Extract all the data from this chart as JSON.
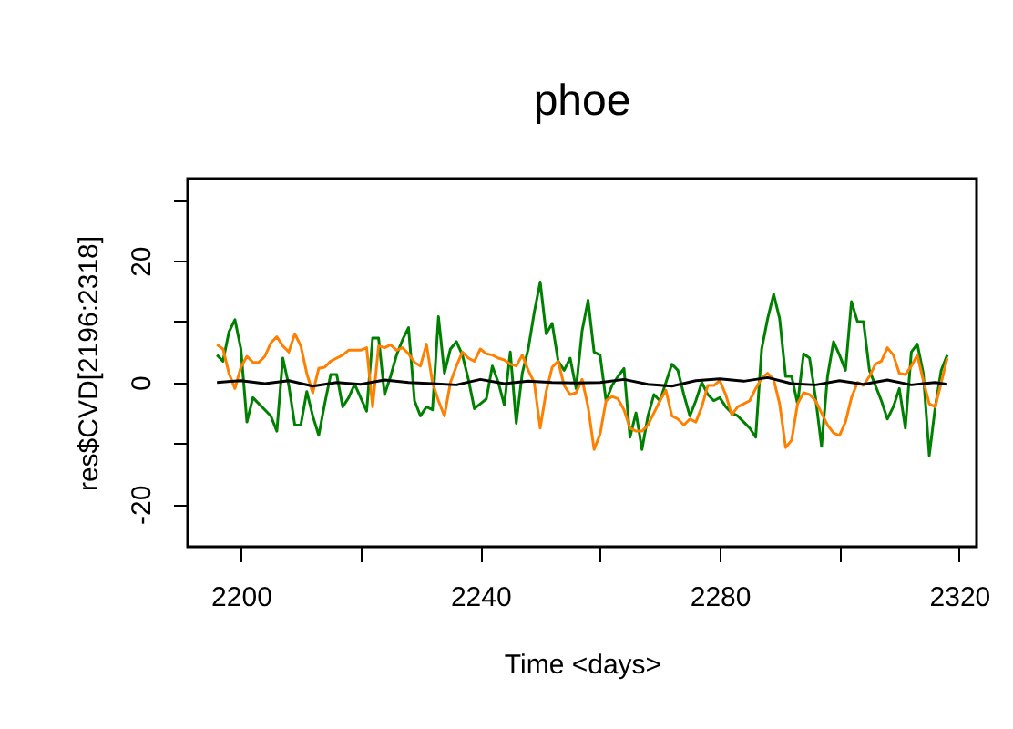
{
  "chart_data": {
    "type": "line",
    "title": "phoe",
    "xlabel": "Time <days>",
    "ylabel": "res$CVD[2196:2318]",
    "xlim": [
      2191.1,
      2322.9
    ],
    "ylim": [
      -27,
      33.5
    ],
    "xticks": [
      2200,
      {
        "value": 2220,
        "label": null
      },
      2240,
      {
        "value": 2260,
        "label": null
      },
      2280,
      {
        "value": 2300,
        "label": null
      },
      2320
    ],
    "yticks": [
      -20,
      {
        "value": -10,
        "label": null
      },
      0,
      {
        "value": 10,
        "label": null
      },
      20,
      {
        "value": 30,
        "label": null
      }
    ],
    "grid": false,
    "legend": false,
    "line_style": "solid",
    "marker": "none",
    "series": [
      {
        "color": "#008000",
        "x": [
          2196,
          2197,
          2198,
          2199,
          2200,
          2201,
          2202,
          2203,
          2204,
          2205,
          2206,
          2207,
          2208,
          2209,
          2210,
          2211,
          2212,
          2213,
          2214,
          2215,
          2216,
          2217,
          2218,
          2219,
          2220,
          2221,
          2222,
          2223,
          2224,
          2225,
          2226,
          2227,
          2228,
          2229,
          2230,
          2231,
          2232,
          2233,
          2234,
          2235,
          2236,
          2237,
          2238,
          2239,
          2240,
          2241,
          2242,
          2243,
          2244,
          2245,
          2246,
          2247,
          2248,
          2249,
          2250,
          2251,
          2252,
          2253,
          2254,
          2255,
          2256,
          2257,
          2258,
          2259,
          2260,
          2261,
          2262,
          2263,
          2264,
          2265,
          2266,
          2267,
          2268,
          2269,
          2270,
          2271,
          2272,
          2273,
          2274,
          2275,
          2276,
          2277,
          2278,
          2279,
          2280,
          2281,
          2282,
          2283,
          2284,
          2285,
          2286,
          2287,
          2288,
          2289,
          2290,
          2291,
          2292,
          2293,
          2294,
          2295,
          2296,
          2297,
          2298,
          2299,
          2300,
          2301,
          2302,
          2303,
          2304,
          2305,
          2306,
          2307,
          2308,
          2309,
          2310,
          2311,
          2312,
          2313,
          2314,
          2315,
          2316,
          2317,
          2318
        ],
        "values": [
          4.5,
          3.5,
          8.3,
          10.3,
          5.5,
          -6.5,
          -2.5,
          -3.5,
          -4.5,
          -5.5,
          -8,
          4,
          -0.5,
          -7,
          -7,
          -1.5,
          -5.5,
          -8.7,
          -3.5,
          1.3,
          1.3,
          -4,
          -2.5,
          -0.3,
          -2.5,
          -4.7,
          7.3,
          7.3,
          -2,
          1,
          4.5,
          7,
          9,
          -3,
          -5.5,
          -4,
          -4.5,
          10.8,
          1.5,
          5.5,
          6.7,
          4.5,
          0.5,
          -4.3,
          -3.5,
          -2.7,
          2.7,
          0,
          -3.7,
          5,
          -6.7,
          1.5,
          5.5,
          11.5,
          16.5,
          8,
          9.7,
          3.5,
          2,
          4,
          -1,
          8.5,
          13.5,
          5,
          4.5,
          -3,
          -0.5,
          1,
          2.3,
          -9,
          -5,
          -11,
          -5.5,
          -2,
          -3,
          0,
          3,
          2,
          -2,
          -5.5,
          -3,
          0,
          -2,
          -3,
          -2.5,
          -4,
          -5,
          -5.5,
          -6.5,
          -7.5,
          -9,
          5.5,
          10.5,
          14.5,
          10.5,
          1,
          1,
          -3.5,
          4.7,
          4,
          -2.5,
          -10.5,
          1,
          6.7,
          4.5,
          2,
          13.3,
          10,
          10,
          2,
          -0.5,
          -3,
          -6,
          -4,
          -1,
          -7.5,
          5,
          6.3,
          1.5,
          -12,
          -4,
          2,
          4.5
        ]
      },
      {
        "color": "#ff8000",
        "x": [
          2196,
          2197,
          2198,
          2199,
          2200,
          2201,
          2202,
          2203,
          2204,
          2205,
          2206,
          2207,
          2208,
          2209,
          2210,
          2211,
          2212,
          2213,
          2214,
          2215,
          2216,
          2217,
          2218,
          2219,
          2220,
          2221,
          2222,
          2223,
          2224,
          2225,
          2226,
          2227,
          2228,
          2229,
          2230,
          2231,
          2232,
          2233,
          2234,
          2235,
          2236,
          2237,
          2238,
          2239,
          2240,
          2241,
          2242,
          2243,
          2244,
          2245,
          2246,
          2247,
          2248,
          2249,
          2250,
          2251,
          2252,
          2253,
          2254,
          2255,
          2256,
          2257,
          2258,
          2259,
          2260,
          2261,
          2262,
          2263,
          2264,
          2265,
          2266,
          2267,
          2268,
          2269,
          2270,
          2271,
          2272,
          2273,
          2274,
          2275,
          2276,
          2277,
          2278,
          2279,
          2280,
          2281,
          2282,
          2283,
          2284,
          2285,
          2286,
          2287,
          2288,
          2289,
          2290,
          2291,
          2292,
          2293,
          2294,
          2295,
          2296,
          2297,
          2298,
          2299,
          2300,
          2301,
          2302,
          2303,
          2304,
          2305,
          2306,
          2307,
          2308,
          2309,
          2310,
          2311,
          2312,
          2313,
          2314,
          2315,
          2316,
          2317,
          2318
        ],
        "values": [
          6.2,
          5.5,
          1.5,
          -1,
          2.5,
          4.3,
          3.3,
          3.3,
          4.3,
          6.5,
          7.5,
          6,
          5,
          8,
          6,
          1.5,
          -1.7,
          2.3,
          2.5,
          3.5,
          4,
          4.5,
          5.3,
          5.3,
          5.3,
          5.7,
          -4,
          6,
          5.7,
          6.2,
          5.3,
          5.7,
          4.7,
          3.3,
          2.7,
          6.3,
          0,
          -3,
          -5.5,
          0,
          2.7,
          5,
          4,
          3.5,
          5.5,
          4.7,
          4.5,
          4,
          3.7,
          3,
          2.7,
          4.5,
          2,
          0,
          -7.5,
          -1.5,
          2.5,
          3.5,
          -0.5,
          -2,
          -1.7,
          0.5,
          -4,
          -11,
          -8.5,
          -3,
          -2.3,
          -2.7,
          -4.5,
          -7.5,
          -8,
          -8,
          -7,
          -5,
          -3,
          -1.3,
          -5.5,
          -6,
          -7,
          -6,
          -6.5,
          -4,
          -0.5,
          -0.5,
          0.3,
          -2,
          -5.3,
          -4,
          -3.5,
          -3,
          -1,
          0.7,
          1.5,
          0.5,
          -3.5,
          -10.7,
          -9.5,
          -3.5,
          -1.7,
          -2,
          -3,
          -5,
          -7,
          -8.3,
          -8.7,
          -6.5,
          -2.5,
          0,
          -0.5,
          1,
          3,
          3.5,
          5.7,
          4.5,
          1.5,
          1.3,
          2.7,
          4.5,
          0.3,
          -3.5,
          -4,
          0,
          4
        ]
      },
      {
        "color": "#000000",
        "x": [
          2196,
          2200,
          2204,
          2208,
          2212,
          2216,
          2220,
          2224,
          2228,
          2232,
          2236,
          2240,
          2244,
          2248,
          2252,
          2256,
          2260,
          2264,
          2268,
          2272,
          2276,
          2280,
          2284,
          2288,
          2292,
          2296,
          2300,
          2304,
          2308,
          2312,
          2316,
          2318
        ],
        "values": [
          0,
          0.3,
          -0.2,
          0.3,
          -0.6,
          0,
          -0.3,
          0.4,
          0,
          -0.2,
          -0.4,
          0.5,
          -0.2,
          0.2,
          0,
          -0.1,
          0,
          0.5,
          -0.3,
          -0.6,
          0.3,
          0.6,
          0.2,
          0.8,
          -0.2,
          -0.4,
          0.3,
          -0.3,
          0.4,
          -0.4,
          0,
          -0.3
        ]
      }
    ]
  }
}
